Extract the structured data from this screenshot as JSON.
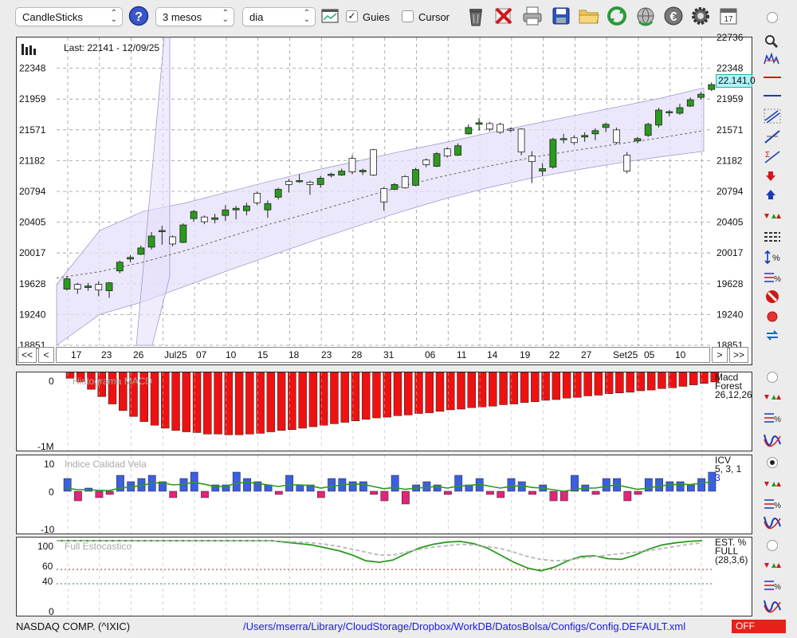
{
  "toolbar": {
    "chart_type": "CandleSticks",
    "period": "3 mesos",
    "interval": "dia",
    "guides_label": "Guies",
    "guides_checked": true,
    "cursor_label": "Cursor",
    "cursor_checked": false,
    "help_label": "?"
  },
  "main": {
    "last_text": "Last: 22141 - 12/09/25",
    "price_tag": "22.141,0",
    "y_left": [
      "22348",
      "21959",
      "21571",
      "21182",
      "20794",
      "20405",
      "20017",
      "19628",
      "19240",
      "18851"
    ],
    "y_right": [
      "22736",
      "22348",
      "21959",
      "21571",
      "21182",
      "20794",
      "20405",
      "20017",
      "19628",
      "19240",
      "18851"
    ],
    "x_labels": [
      "17",
      "23",
      "26",
      "Jul25",
      "07",
      "10",
      "15",
      "18",
      "23",
      "28",
      "31",
      "06",
      "11",
      "14",
      "19",
      "22",
      "27",
      "Set25",
      "05",
      "10"
    ],
    "nav": {
      "first": "<<",
      "prev": "<",
      "next": ">",
      "last": ">>"
    }
  },
  "macd": {
    "title": "Histograma MACD",
    "legend": [
      "Macd",
      "Forest",
      "26,12,26"
    ],
    "y_top": "0",
    "y_bottom": "-1M"
  },
  "icv": {
    "title": "Indice Calidad Vela",
    "legend": [
      "ICV",
      "5, 3, 1",
      "3"
    ],
    "y_top": "10",
    "y_mid": "0",
    "y_bottom": "-10"
  },
  "stoch": {
    "title": "Full Estocastico",
    "legend": [
      "EST. %",
      "FULL",
      "(28,3,6)"
    ],
    "y_labels": [
      "100",
      "60",
      "40",
      "0"
    ]
  },
  "footer": {
    "symbol": "NASDAQ COMP. (^IXIC)",
    "path": "/Users/mserra/Library/CloudStorage/Dropbox/WorkDB/DatosBolsa/Configs/Config.DEFAULT.xml",
    "status": "OFF"
  },
  "colors": {
    "bull": "#2b9a1f",
    "bear": "#e8e8e8",
    "band": "#e6e0fa",
    "macd": "#ee1111",
    "icv_pos": "#3b5fe0",
    "icv_neg": "#e2257a",
    "status_bg": "#e8201a",
    "path": "#1a1ae0"
  },
  "chart_data": [
    {
      "type": "candlestick",
      "title": "Last: 22141 - 12/09/25",
      "ylim": [
        18851,
        22736
      ],
      "x_tick_labels": [
        "17",
        "23",
        "26",
        "Jul25",
        "07",
        "10",
        "15",
        "18",
        "23",
        "28",
        "31",
        "06",
        "11",
        "14",
        "19",
        "22",
        "27",
        "Set25",
        "05",
        "10"
      ],
      "candles": [
        {
          "o": 19560,
          "c": 19690,
          "h": 19720,
          "l": 19540
        },
        {
          "o": 19620,
          "c": 19560,
          "h": 19640,
          "l": 19500
        },
        {
          "o": 19580,
          "c": 19600,
          "h": 19640,
          "l": 19540
        },
        {
          "o": 19620,
          "c": 19550,
          "h": 19660,
          "l": 19470
        },
        {
          "o": 19540,
          "c": 19640,
          "h": 19650,
          "l": 19450
        },
        {
          "o": 19790,
          "c": 19900,
          "h": 19920,
          "l": 19760
        },
        {
          "o": 19940,
          "c": 19960,
          "h": 19990,
          "l": 19900
        },
        {
          "o": 20000,
          "c": 20080,
          "h": 20110,
          "l": 19990
        },
        {
          "o": 20090,
          "c": 20230,
          "h": 20280,
          "l": 20060
        },
        {
          "o": 20290,
          "c": 20300,
          "h": 20360,
          "l": 20120
        },
        {
          "o": 20220,
          "c": 20130,
          "h": 20240,
          "l": 20100
        },
        {
          "o": 20150,
          "c": 20370,
          "h": 20390,
          "l": 20140
        },
        {
          "o": 20450,
          "c": 20540,
          "h": 20560,
          "l": 20410
        },
        {
          "o": 20470,
          "c": 20410,
          "h": 20490,
          "l": 20380
        },
        {
          "o": 20440,
          "c": 20460,
          "h": 20510,
          "l": 20390
        },
        {
          "o": 20490,
          "c": 20560,
          "h": 20620,
          "l": 20420
        },
        {
          "o": 20560,
          "c": 20580,
          "h": 20610,
          "l": 20440
        },
        {
          "o": 20550,
          "c": 20610,
          "h": 20650,
          "l": 20490
        },
        {
          "o": 20770,
          "c": 20650,
          "h": 20790,
          "l": 20620
        },
        {
          "o": 20560,
          "c": 20640,
          "h": 20680,
          "l": 20460
        },
        {
          "o": 20720,
          "c": 20820,
          "h": 20840,
          "l": 20690
        },
        {
          "o": 20920,
          "c": 20880,
          "h": 20950,
          "l": 20780
        },
        {
          "o": 20920,
          "c": 20930,
          "h": 21010,
          "l": 20900
        },
        {
          "o": 20910,
          "c": 20880,
          "h": 20930,
          "l": 20750
        },
        {
          "o": 20880,
          "c": 20960,
          "h": 20990,
          "l": 20840
        },
        {
          "o": 21000,
          "c": 21010,
          "h": 21030,
          "l": 20970
        },
        {
          "o": 21000,
          "c": 21050,
          "h": 21080,
          "l": 20990
        },
        {
          "o": 21210,
          "c": 21040,
          "h": 21250,
          "l": 21010
        },
        {
          "o": 21040,
          "c": 21060,
          "h": 21080,
          "l": 21000
        },
        {
          "o": 21320,
          "c": 21000,
          "h": 21330,
          "l": 20990
        },
        {
          "o": 20830,
          "c": 20660,
          "h": 20850,
          "l": 20550
        },
        {
          "o": 20820,
          "c": 20880,
          "h": 20900,
          "l": 20810
        },
        {
          "o": 20980,
          "c": 20840,
          "h": 21000,
          "l": 20830
        },
        {
          "o": 20870,
          "c": 21070,
          "h": 21090,
          "l": 20860
        },
        {
          "o": 21190,
          "c": 21130,
          "h": 21210,
          "l": 21100
        },
        {
          "o": 21110,
          "c": 21270,
          "h": 21290,
          "l": 21100
        },
        {
          "o": 21330,
          "c": 21240,
          "h": 21350,
          "l": 21220
        },
        {
          "o": 21250,
          "c": 21370,
          "h": 21400,
          "l": 21240
        },
        {
          "o": 21520,
          "c": 21600,
          "h": 21640,
          "l": 21510
        },
        {
          "o": 21640,
          "c": 21660,
          "h": 21720,
          "l": 21560
        },
        {
          "o": 21650,
          "c": 21580,
          "h": 21670,
          "l": 21550
        },
        {
          "o": 21640,
          "c": 21540,
          "h": 21660,
          "l": 21520
        },
        {
          "o": 21580,
          "c": 21570,
          "h": 21600,
          "l": 21540
        },
        {
          "o": 21580,
          "c": 21290,
          "h": 21590,
          "l": 21250
        },
        {
          "o": 21240,
          "c": 21170,
          "h": 21300,
          "l": 20900
        },
        {
          "o": 21050,
          "c": 21080,
          "h": 21150,
          "l": 20990
        },
        {
          "o": 21100,
          "c": 21450,
          "h": 21470,
          "l": 21080
        },
        {
          "o": 21460,
          "c": 21460,
          "h": 21520,
          "l": 21400
        },
        {
          "o": 21470,
          "c": 21410,
          "h": 21500,
          "l": 21380
        },
        {
          "o": 21480,
          "c": 21500,
          "h": 21540,
          "l": 21420
        },
        {
          "o": 21520,
          "c": 21560,
          "h": 21590,
          "l": 21440
        },
        {
          "o": 21600,
          "c": 21640,
          "h": 21660,
          "l": 21540
        },
        {
          "o": 21570,
          "c": 21410,
          "h": 21600,
          "l": 21390
        },
        {
          "o": 21250,
          "c": 21050,
          "h": 21290,
          "l": 21020
        },
        {
          "o": 21430,
          "c": 21460,
          "h": 21480,
          "l": 21400
        },
        {
          "o": 21500,
          "c": 21640,
          "h": 21660,
          "l": 21480
        },
        {
          "o": 21630,
          "c": 21820,
          "h": 21850,
          "l": 21600
        },
        {
          "o": 21790,
          "c": 21800,
          "h": 21820,
          "l": 21740
        },
        {
          "o": 21780,
          "c": 21850,
          "h": 21900,
          "l": 21760
        },
        {
          "o": 21870,
          "c": 21950,
          "h": 21980,
          "l": 21860
        },
        {
          "o": 21980,
          "c": 22020,
          "h": 22050,
          "l": 21950
        },
        {
          "o": 22080,
          "c": 22141,
          "h": 22170,
          "l": 22060
        }
      ],
      "band_upper": [
        19620,
        20300,
        20540,
        20650,
        20790,
        20930,
        21060,
        21180,
        21300,
        21410,
        21530,
        21640,
        21750,
        21860,
        21970,
        22100
      ],
      "band_lower": [
        18851,
        19240,
        19400,
        19600,
        19800,
        19990,
        20180,
        20360,
        20540,
        20700,
        20840,
        20960,
        21060,
        21150,
        21230,
        21300
      ],
      "moving_average": [
        19700,
        19780,
        19900,
        20050,
        20220,
        20390,
        20540,
        20700,
        20860,
        20990,
        21110,
        21220,
        21310,
        21390,
        21470,
        21560
      ]
    },
    {
      "type": "bar",
      "title": "Histograma MACD",
      "legend": [
        "Macd",
        "Forest",
        "26,12,26"
      ],
      "ylim": [
        -1000000,
        0
      ],
      "values": [
        -80000,
        -130000,
        -230000,
        -330000,
        -430000,
        -520000,
        -600000,
        -670000,
        -720000,
        -760000,
        -790000,
        -810000,
        -820000,
        -840000,
        -840000,
        -850000,
        -850000,
        -840000,
        -830000,
        -810000,
        -790000,
        -780000,
        -760000,
        -740000,
        -720000,
        -700000,
        -680000,
        -660000,
        -640000,
        -620000,
        -610000,
        -590000,
        -580000,
        -560000,
        -550000,
        -530000,
        -510000,
        -500000,
        -480000,
        -470000,
        -460000,
        -440000,
        -430000,
        -410000,
        -400000,
        -380000,
        -370000,
        -350000,
        -340000,
        -320000,
        -310000,
        -290000,
        -280000,
        -270000,
        -250000,
        -240000,
        -220000,
        -210000,
        -190000,
        -170000,
        -150000,
        -130000
      ]
    },
    {
      "type": "bar",
      "title": "Indice Calidad Vela",
      "legend": [
        "ICV",
        "5, 3, 1",
        "3"
      ],
      "ylim": [
        -10,
        10
      ],
      "values": [
        4,
        -3,
        1,
        -2,
        -1,
        5,
        3,
        4,
        5,
        3,
        -2,
        4,
        6,
        -2,
        2,
        2,
        6,
        4,
        3,
        2,
        -1,
        5,
        2,
        2,
        -2,
        4,
        4,
        3,
        3,
        -1,
        -3,
        5,
        -4,
        2,
        3,
        2,
        -1,
        5,
        2,
        4,
        -1,
        -2,
        4,
        3,
        -1,
        2,
        -3,
        -3,
        5,
        2,
        -1,
        4,
        4,
        -3,
        -1,
        4,
        4,
        3,
        3,
        2,
        4,
        6
      ],
      "signal": [
        1,
        0.5,
        0.5,
        0.3,
        0.2,
        1,
        1.3,
        1.8,
        2.5,
        2.7,
        2,
        2.2,
        2.8,
        2.2,
        1.5,
        1.5,
        2.5,
        2.8,
        2.5,
        2,
        1.5,
        2,
        2,
        1.8,
        1,
        1.5,
        2,
        2.3,
        2.2,
        1.5,
        0.8,
        1.2,
        0.6,
        1,
        1.2,
        1.5,
        1,
        1.6,
        1.8,
        2.2,
        1.6,
        1,
        1.5,
        1.8,
        1.2,
        1,
        0.5,
        0,
        0.5,
        1,
        1,
        1.5,
        2,
        1.3,
        0.6,
        1,
        1.6,
        2,
        2.2,
        2.1,
        2.5,
        3
      ]
    },
    {
      "type": "line",
      "title": "Full Estocastico",
      "legend": [
        "EST. %",
        "FULL",
        "(28,3,6)"
      ],
      "ylim": [
        0,
        100
      ],
      "series": [
        {
          "values": [
            100,
            100,
            100,
            100,
            100,
            100,
            100,
            100,
            100,
            100,
            100,
            100,
            100,
            100,
            100,
            100,
            100,
            98,
            96,
            94,
            90,
            86,
            80,
            72,
            70,
            73,
            82,
            90,
            95,
            98,
            99,
            96,
            90,
            80,
            70,
            62,
            58,
            63,
            72,
            78,
            79,
            75,
            74,
            80,
            88,
            94,
            97,
            99,
            100
          ]
        },
        {
          "values": [
            100,
            100,
            100,
            100,
            100,
            100,
            100,
            100,
            100,
            100,
            100,
            100,
            100,
            100,
            100,
            100,
            100,
            99,
            98,
            97,
            95,
            92,
            88,
            84,
            80,
            80,
            84,
            88,
            91,
            93,
            95,
            94,
            92,
            89,
            84,
            78,
            74,
            72,
            73,
            76,
            78,
            80,
            82,
            84,
            86,
            89,
            92,
            95,
            97
          ]
        }
      ]
    }
  ]
}
